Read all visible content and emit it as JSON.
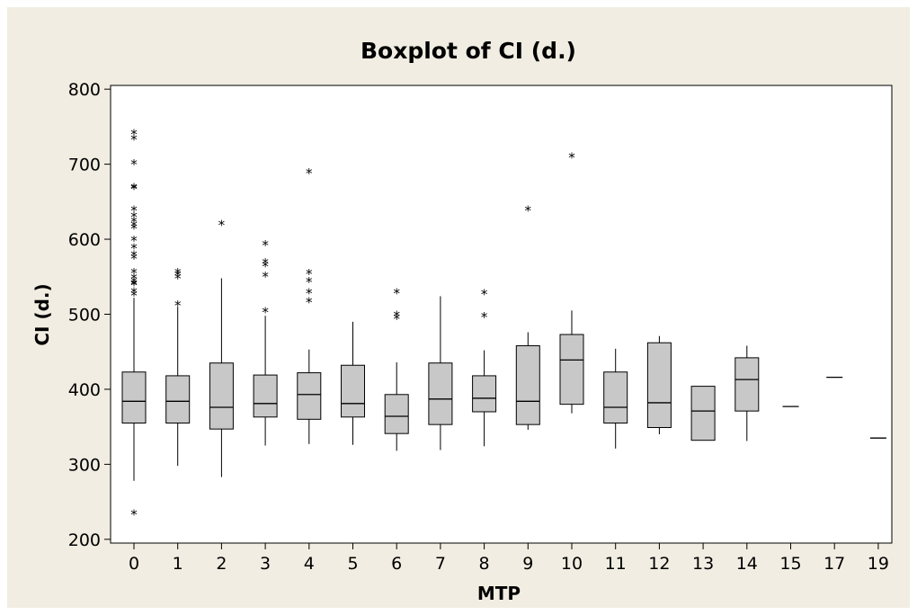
{
  "chart_data": {
    "type": "boxplot",
    "title": "Boxplot of CI (d.)",
    "xlabel": "MTP",
    "ylabel": "CI (d.)",
    "ylim": [
      195,
      805
    ],
    "yticks": [
      200,
      300,
      400,
      500,
      600,
      700,
      800
    ],
    "grid": false,
    "colors": {
      "frame_bg": "#f1ede2",
      "plot_bg": "#ffffff",
      "box_fill": "#c8c8c8",
      "ink": "#000000"
    },
    "categories": [
      "0",
      "1",
      "2",
      "3",
      "4",
      "5",
      "6",
      "7",
      "8",
      "9",
      "10",
      "11",
      "12",
      "13",
      "14",
      "15",
      "17",
      "19"
    ],
    "boxes": [
      {
        "category": "0",
        "whisker_low": 278,
        "q1": 355,
        "median": 384,
        "q3": 423,
        "whisker_high": 522,
        "outliers": [
          235,
          527,
          531,
          541,
          542,
          545,
          550,
          557,
          576,
          580,
          590,
          600,
          616,
          620,
          625,
          632,
          640,
          669,
          670,
          702,
          735,
          742
        ]
      },
      {
        "category": "1",
        "whisker_low": 298,
        "q1": 355,
        "median": 384,
        "q3": 418,
        "whisker_high": 510,
        "outliers": [
          514,
          550,
          554,
          557
        ]
      },
      {
        "category": "2",
        "whisker_low": 283,
        "q1": 347,
        "median": 376,
        "q3": 435,
        "whisker_high": 548,
        "outliers": [
          621
        ]
      },
      {
        "category": "3",
        "whisker_low": 325,
        "q1": 363,
        "median": 381,
        "q3": 419,
        "whisker_high": 498,
        "outliers": [
          505,
          552,
          566,
          570,
          594
        ]
      },
      {
        "category": "4",
        "whisker_low": 327,
        "q1": 360,
        "median": 393,
        "q3": 422,
        "whisker_high": 453,
        "outliers": [
          518,
          530,
          545,
          556,
          690
        ]
      },
      {
        "category": "5",
        "whisker_low": 326,
        "q1": 363,
        "median": 381,
        "q3": 432,
        "whisker_high": 490,
        "outliers": []
      },
      {
        "category": "6",
        "whisker_low": 318,
        "q1": 341,
        "median": 364,
        "q3": 393,
        "whisker_high": 436,
        "outliers": [
          496,
          500,
          530
        ]
      },
      {
        "category": "7",
        "whisker_low": 319,
        "q1": 353,
        "median": 387,
        "q3": 435,
        "whisker_high": 524,
        "outliers": []
      },
      {
        "category": "8",
        "whisker_low": 324,
        "q1": 370,
        "median": 388,
        "q3": 418,
        "whisker_high": 452,
        "outliers": [
          498,
          529
        ]
      },
      {
        "category": "9",
        "whisker_low": 346,
        "q1": 353,
        "median": 384,
        "q3": 458,
        "whisker_high": 476,
        "outliers": [
          640
        ]
      },
      {
        "category": "10",
        "whisker_low": 368,
        "q1": 380,
        "median": 439,
        "q3": 473,
        "whisker_high": 505,
        "outliers": [
          711
        ]
      },
      {
        "category": "11",
        "whisker_low": 321,
        "q1": 355,
        "median": 376,
        "q3": 423,
        "whisker_high": 454,
        "outliers": []
      },
      {
        "category": "12",
        "whisker_low": 340,
        "q1": 349,
        "median": 382,
        "q3": 462,
        "whisker_high": 471,
        "outliers": []
      },
      {
        "category": "13",
        "whisker_low": 332,
        "q1": 332,
        "median": 371,
        "q3": 404,
        "whisker_high": 404,
        "outliers": []
      },
      {
        "category": "14",
        "whisker_low": 331,
        "q1": 371,
        "median": 413,
        "q3": 442,
        "whisker_high": 458,
        "outliers": []
      },
      {
        "category": "15",
        "single_value": 377
      },
      {
        "category": "17",
        "single_value": 416
      },
      {
        "category": "19",
        "single_value": 335
      }
    ]
  }
}
